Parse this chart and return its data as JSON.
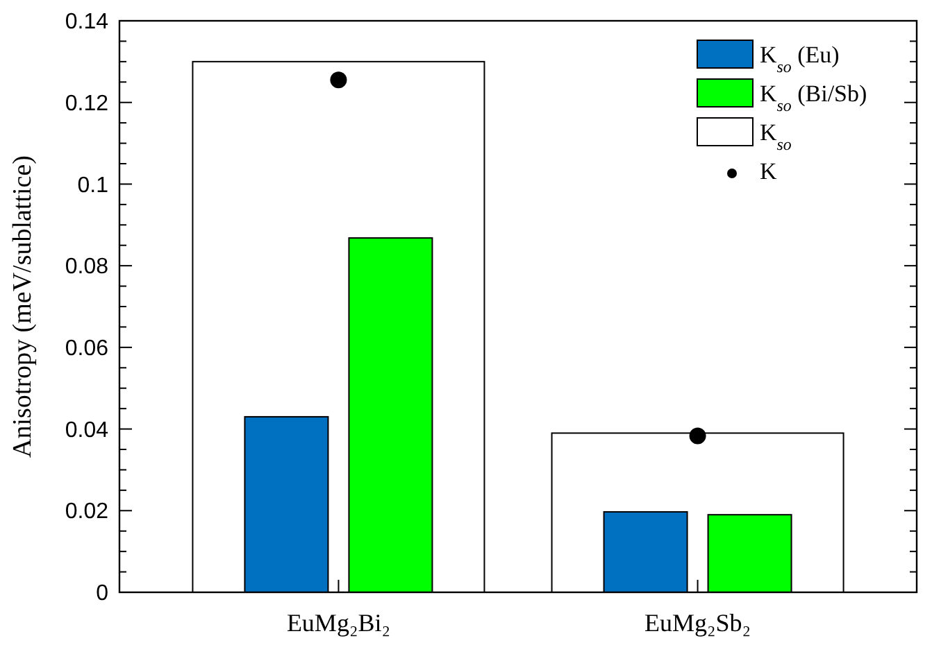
{
  "chart_data": {
    "type": "bar",
    "ylabel": "Anisotropy (meV/sublattice)",
    "categories": [
      "EuMg₂Bi₂",
      "EuMg₂Sb₂"
    ],
    "series": [
      {
        "name": "K$_{so}$ (Eu)",
        "color": "#0070c0",
        "values": [
          0.043,
          0.0197
        ]
      },
      {
        "name": "K$_{so}$ (Bi/Sb)",
        "color": "#00ff00",
        "values": [
          0.0868,
          0.019
        ]
      },
      {
        "name": "K$_{so}$",
        "color": "#ffffff",
        "values": [
          0.13,
          0.039
        ]
      },
      {
        "name": "K",
        "type": "scatter",
        "color": "#000000",
        "x": [
          "EuMg₂Bi₂",
          "EuMg₂Sb₂"
        ],
        "values": [
          0.1255,
          0.0383
        ]
      }
    ],
    "ylim": [
      0,
      0.14
    ],
    "yticks": [
      0,
      {
        "value": 0.005,
        "label": null
      },
      {
        "value": 0.01,
        "label": null
      },
      {
        "value": 0.015,
        "label": null
      },
      0.02,
      {
        "value": 0.025,
        "label": null
      },
      {
        "value": 0.03,
        "label": null
      },
      {
        "value": 0.035,
        "label": null
      },
      0.04,
      {
        "value": 0.045,
        "label": null
      },
      {
        "value": 0.05,
        "label": null
      },
      {
        "value": 0.055,
        "label": null
      },
      0.06,
      {
        "value": 0.065,
        "label": null
      },
      {
        "value": 0.07,
        "label": null
      },
      {
        "value": 0.075,
        "label": null
      },
      0.08,
      {
        "value": 0.085,
        "label": null
      },
      {
        "value": 0.09,
        "label": null
      },
      {
        "value": 0.095,
        "label": null
      },
      0.1,
      {
        "value": 0.105,
        "label": null
      },
      {
        "value": 0.11,
        "label": null
      },
      {
        "value": 0.115,
        "label": null
      },
      0.12,
      {
        "value": 0.125,
        "label": null
      },
      {
        "value": 0.13,
        "label": null
      },
      {
        "value": 0.135,
        "label": null
      },
      0.14
    ],
    "grid": false,
    "legend": "top right",
    "marker": "circle"
  }
}
